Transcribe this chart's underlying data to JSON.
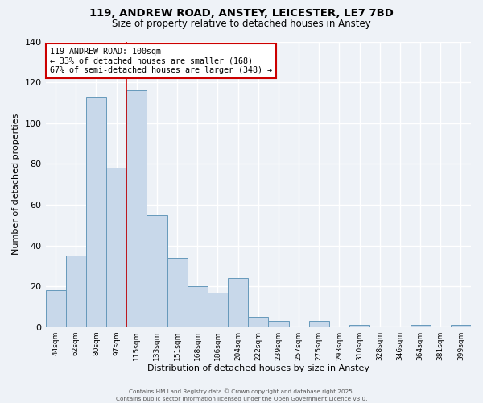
{
  "title": "119, ANDREW ROAD, ANSTEY, LEICESTER, LE7 7BD",
  "subtitle": "Size of property relative to detached houses in Anstey",
  "xlabel": "Distribution of detached houses by size in Anstey",
  "ylabel": "Number of detached properties",
  "bar_labels": [
    "44sqm",
    "62sqm",
    "80sqm",
    "97sqm",
    "115sqm",
    "133sqm",
    "151sqm",
    "168sqm",
    "186sqm",
    "204sqm",
    "222sqm",
    "239sqm",
    "257sqm",
    "275sqm",
    "293sqm",
    "310sqm",
    "328sqm",
    "346sqm",
    "364sqm",
    "381sqm",
    "399sqm"
  ],
  "bar_values": [
    18,
    35,
    113,
    78,
    116,
    55,
    34,
    20,
    17,
    24,
    5,
    3,
    0,
    3,
    0,
    1,
    0,
    0,
    1,
    0,
    1
  ],
  "bar_color": "#c8d8ea",
  "bar_edge_color": "#6699bb",
  "ylim": [
    0,
    140
  ],
  "yticks": [
    0,
    20,
    40,
    60,
    80,
    100,
    120,
    140
  ],
  "property_label": "119 ANDREW ROAD: 100sqm",
  "annotation_line1": "← 33% of detached houses are smaller (168)",
  "annotation_line2": "67% of semi-detached houses are larger (348) →",
  "annotation_box_color": "#cc0000",
  "vline_color": "#cc0000",
  "vline_x": 3.5,
  "footer_line1": "Contains HM Land Registry data © Crown copyright and database right 2025.",
  "footer_line2": "Contains public sector information licensed under the Open Government Licence v3.0.",
  "background_color": "#eef2f7",
  "grid_color": "#ffffff"
}
